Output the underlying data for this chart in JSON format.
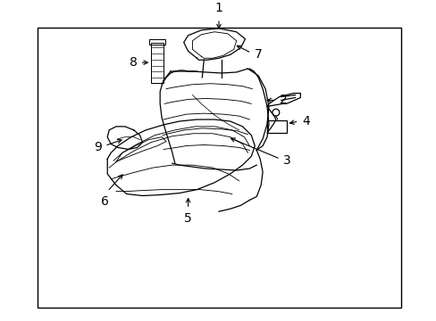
{
  "background_color": "#ffffff",
  "line_color": "#000000",
  "figsize": [
    4.89,
    3.6
  ],
  "dpi": 100,
  "label_fontsize": 10
}
